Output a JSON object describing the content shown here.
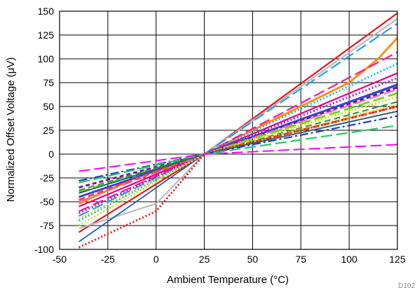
{
  "chart_data": {
    "type": "line",
    "title": "",
    "xlabel": "Ambient Temperature (°C)",
    "ylabel": "Normalized Offset Voltage (μV)",
    "xlim": [
      -50,
      125
    ],
    "ylim": [
      -100,
      150
    ],
    "xticks": [
      -50,
      -25,
      0,
      25,
      50,
      75,
      100,
      125
    ],
    "yticks": [
      -100,
      -75,
      -50,
      -25,
      0,
      25,
      50,
      75,
      100,
      125,
      150
    ],
    "grid": true,
    "legend": "none",
    "note": "D102",
    "series": [
      {
        "color": "#e8141c",
        "dash": "solid",
        "width": 2.2,
        "x": [
          -40,
          25,
          125
        ],
        "y": [
          -82,
          0,
          148
        ]
      },
      {
        "color": "#bbbbbb",
        "dash": "solid",
        "width": 2.2,
        "x": [
          -40,
          0,
          25,
          125
        ],
        "y": [
          -78,
          -52,
          0,
          142
        ]
      },
      {
        "color": "#ff8c00",
        "dash": "solid",
        "width": 2.8,
        "x": [
          -40,
          0,
          25,
          50,
          75,
          100,
          115,
          125
        ],
        "y": [
          -52,
          -15,
          0,
          25,
          50,
          75,
          100,
          122
        ]
      },
      {
        "color": "#1fa2e8",
        "dash": "long",
        "width": 2.2,
        "x": [
          -40,
          25,
          125
        ],
        "y": [
          -65,
          0,
          137
        ]
      },
      {
        "color": "#ff1493",
        "dash": "long",
        "width": 2.2,
        "x": [
          -40,
          25,
          125
        ],
        "y": [
          -60,
          0,
          107
        ]
      },
      {
        "color": "#e6007e",
        "dash": "solid",
        "width": 2.2,
        "x": [
          -40,
          25,
          125
        ],
        "y": [
          -55,
          0,
          85
        ]
      },
      {
        "color": "#00bfff",
        "dash": "dot",
        "width": 2.8,
        "x": [
          -40,
          25,
          125
        ],
        "y": [
          -70,
          0,
          95
        ]
      },
      {
        "color": "#a020f0",
        "dash": "dot",
        "width": 3.0,
        "x": [
          -40,
          25,
          125
        ],
        "y": [
          -62,
          0,
          80
        ]
      },
      {
        "color": "#3a3adc",
        "dash": "solid",
        "width": 2.8,
        "x": [
          -40,
          25,
          125
        ],
        "y": [
          -45,
          0,
          73
        ]
      },
      {
        "color": "#2a5ab8",
        "dash": "solid",
        "width": 1.8,
        "x": [
          -40,
          25,
          125
        ],
        "y": [
          -92,
          0,
          72
        ]
      },
      {
        "color": "#7a0aa0",
        "dash": "short",
        "width": 2.8,
        "x": [
          -40,
          25,
          125
        ],
        "y": [
          -35,
          0,
          70
        ]
      },
      {
        "color": "#ff66cc",
        "dash": "long",
        "width": 2.2,
        "x": [
          -40,
          25,
          125
        ],
        "y": [
          -50,
          0,
          68
        ]
      },
      {
        "color": "#66dd00",
        "dash": "long",
        "width": 2.8,
        "x": [
          -40,
          25,
          125
        ],
        "y": [
          -40,
          0,
          64
        ]
      },
      {
        "color": "#c8e000",
        "dash": "dot",
        "width": 2.8,
        "x": [
          -40,
          25,
          125
        ],
        "y": [
          -75,
          0,
          60
        ]
      },
      {
        "color": "#2ea04a",
        "dash": "dash",
        "width": 2.2,
        "x": [
          -40,
          25,
          125
        ],
        "y": [
          -38,
          0,
          55
        ]
      },
      {
        "color": "#ffd000",
        "dash": "dot",
        "width": 2.8,
        "x": [
          -40,
          25,
          125
        ],
        "y": [
          -68,
          0,
          52
        ]
      },
      {
        "color": "#ee5522",
        "dash": "dash",
        "width": 3.0,
        "x": [
          -40,
          25,
          125
        ],
        "y": [
          -48,
          0,
          50
        ]
      },
      {
        "color": "#e8141c",
        "dash": "dot",
        "width": 3.0,
        "x": [
          -40,
          0,
          25,
          125
        ],
        "y": [
          -98,
          -60,
          0,
          50
        ]
      },
      {
        "color": "#2f5f6f",
        "dash": "solid",
        "width": 2.0,
        "x": [
          -40,
          25,
          125
        ],
        "y": [
          -41,
          0,
          45
        ]
      },
      {
        "color": "#1e3fb0",
        "dash": "dashdot",
        "width": 2.2,
        "x": [
          -40,
          25,
          125
        ],
        "y": [
          -28,
          0,
          40
        ]
      },
      {
        "color": "#22cc66",
        "dash": "long",
        "width": 2.2,
        "x": [
          -40,
          25,
          125
        ],
        "y": [
          -30,
          0,
          30
        ]
      },
      {
        "color": "#ff00ff",
        "dash": "long",
        "width": 2.0,
        "x": [
          -40,
          25,
          125
        ],
        "y": [
          -18,
          0,
          10
        ]
      }
    ]
  }
}
